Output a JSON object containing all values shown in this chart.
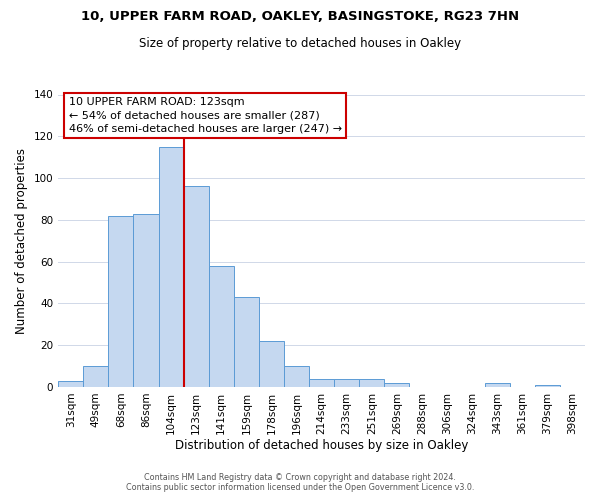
{
  "title": "10, UPPER FARM ROAD, OAKLEY, BASINGSTOKE, RG23 7HN",
  "subtitle": "Size of property relative to detached houses in Oakley",
  "xlabel": "Distribution of detached houses by size in Oakley",
  "ylabel": "Number of detached properties",
  "bar_labels": [
    "31sqm",
    "49sqm",
    "68sqm",
    "86sqm",
    "104sqm",
    "123sqm",
    "141sqm",
    "159sqm",
    "178sqm",
    "196sqm",
    "214sqm",
    "233sqm",
    "251sqm",
    "269sqm",
    "288sqm",
    "306sqm",
    "324sqm",
    "343sqm",
    "361sqm",
    "379sqm",
    "398sqm"
  ],
  "bar_heights": [
    3,
    10,
    82,
    83,
    115,
    96,
    58,
    43,
    22,
    10,
    4,
    4,
    4,
    2,
    0,
    0,
    0,
    2,
    0,
    1,
    0
  ],
  "bar_color": "#c5d8f0",
  "bar_edge_color": "#5b9bd5",
  "ylim": [
    0,
    140
  ],
  "yticks": [
    0,
    20,
    40,
    60,
    80,
    100,
    120,
    140
  ],
  "vline_x_index": 5,
  "vline_color": "#cc0000",
  "annotation_title": "10 UPPER FARM ROAD: 123sqm",
  "annotation_line1": "← 54% of detached houses are smaller (287)",
  "annotation_line2": "46% of semi-detached houses are larger (247) →",
  "annotation_box_color": "#ffffff",
  "annotation_box_edge_color": "#cc0000",
  "footer1": "Contains HM Land Registry data © Crown copyright and database right 2024.",
  "footer2": "Contains public sector information licensed under the Open Government Licence v3.0.",
  "background_color": "#ffffff",
  "grid_color": "#d0d8e8",
  "title_fontsize": 9.5,
  "subtitle_fontsize": 8.5,
  "xlabel_fontsize": 8.5,
  "ylabel_fontsize": 8.5,
  "tick_fontsize": 7.5,
  "annotation_fontsize": 8.0,
  "footer_fontsize": 5.8
}
